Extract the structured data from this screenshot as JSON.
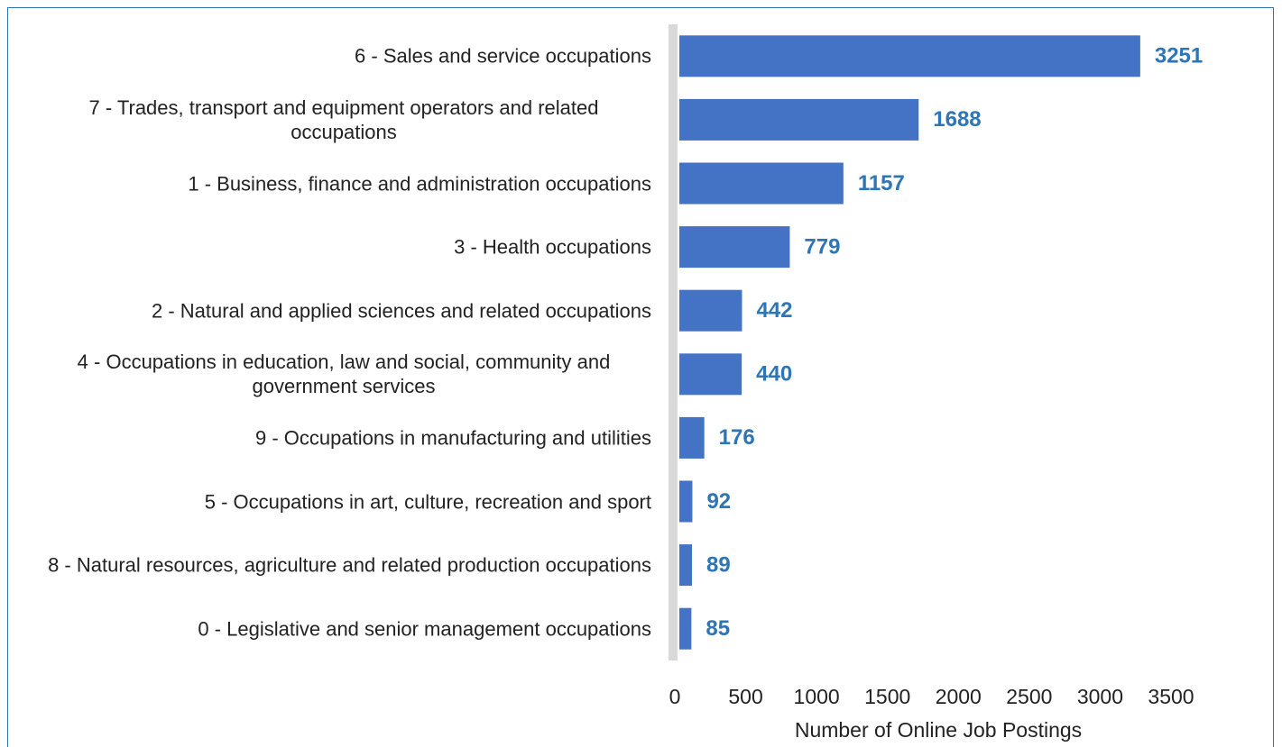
{
  "chart_data": {
    "type": "bar",
    "orientation": "horizontal",
    "categories": [
      "6 - Sales and service occupations",
      "7 - Trades, transport and equipment operators and related occupations",
      "1 - Business, finance and administration occupations",
      "3 - Health occupations",
      "2 - Natural and applied sciences and related occupations",
      "4 - Occupations in education, law and social, community and government services",
      "9 - Occupations in manufacturing and utilities",
      "5 - Occupations in art, culture, recreation and sport",
      "8 - Natural resources, agriculture and related production occupations",
      "0 - Legislative and senior management occupations"
    ],
    "values": [
      3251,
      1688,
      1157,
      779,
      442,
      440,
      176,
      92,
      89,
      85
    ],
    "color": "#4472c4",
    "xlabel": "Number of Online Job Postings",
    "xlim": [
      0,
      3500
    ],
    "xticks": [
      0,
      500,
      1000,
      1500,
      2000,
      2500,
      3000,
      3500
    ]
  }
}
